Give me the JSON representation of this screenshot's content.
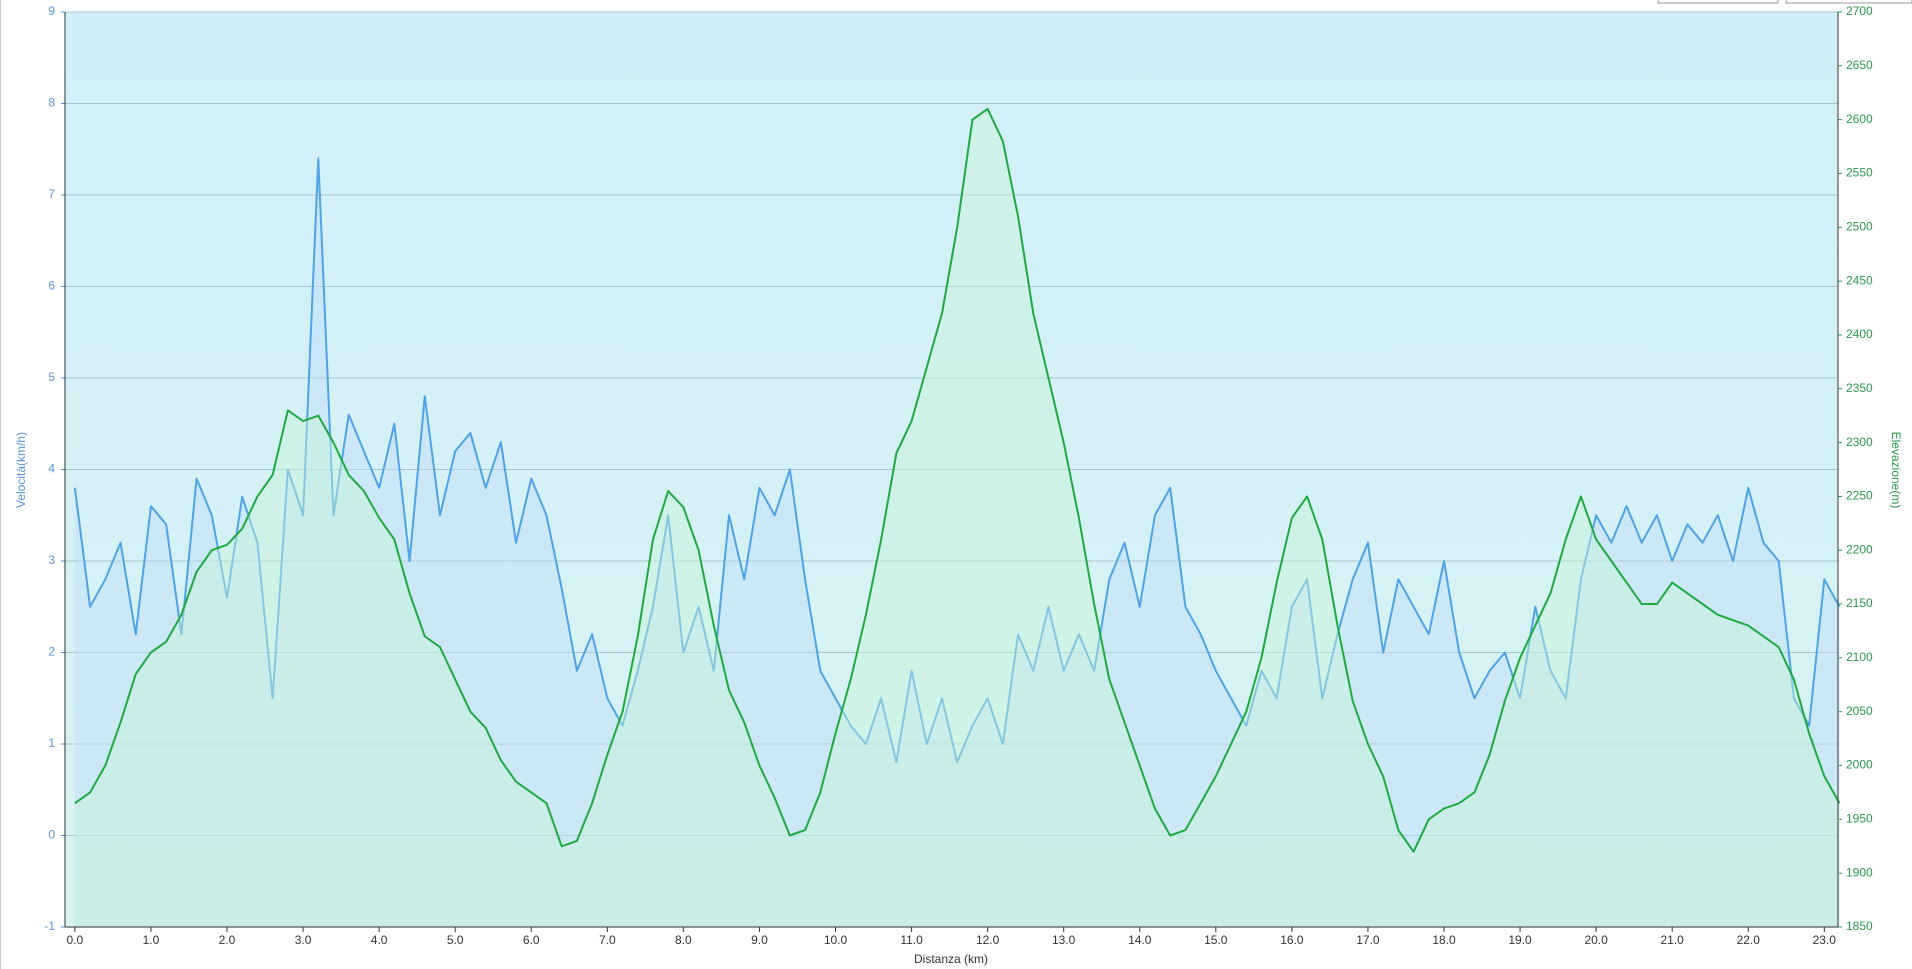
{
  "chart_data": {
    "type": "line",
    "xlabel": "Distanza  (km)",
    "ylabel": "Velocità(km/h)",
    "y2label": "Elevazione(m)",
    "x": [
      0.0,
      0.2,
      0.4,
      0.6,
      0.8,
      1.0,
      1.2,
      1.4,
      1.6,
      1.8,
      2.0,
      2.2,
      2.4,
      2.6,
      2.8,
      3.0,
      3.2,
      3.4,
      3.6,
      3.8,
      4.0,
      4.2,
      4.4,
      4.6,
      4.8,
      5.0,
      5.2,
      5.4,
      5.6,
      5.8,
      6.0,
      6.2,
      6.4,
      6.6,
      6.8,
      7.0,
      7.2,
      7.4,
      7.6,
      7.8,
      8.0,
      8.2,
      8.4,
      8.6,
      8.8,
      9.0,
      9.2,
      9.4,
      9.6,
      9.8,
      10.0,
      10.2,
      10.4,
      10.6,
      10.8,
      11.0,
      11.2,
      11.4,
      11.6,
      11.8,
      12.0,
      12.2,
      12.4,
      12.6,
      12.8,
      13.0,
      13.2,
      13.4,
      13.6,
      13.8,
      14.0,
      14.2,
      14.4,
      14.6,
      14.8,
      15.0,
      15.2,
      15.4,
      15.6,
      15.8,
      16.0,
      16.2,
      16.4,
      16.6,
      16.8,
      17.0,
      17.2,
      17.4,
      17.6,
      17.8,
      18.0,
      18.2,
      18.4,
      18.6,
      18.8,
      19.0,
      19.2,
      19.4,
      19.6,
      19.8,
      20.0,
      20.2,
      20.4,
      20.6,
      20.8,
      21.0,
      21.2,
      21.4,
      21.6,
      21.8,
      22.0,
      22.2,
      22.4,
      22.6,
      22.8,
      23.0,
      23.2
    ],
    "series": [
      {
        "name": "Velocità",
        "color": "#4fa3e6",
        "axis": "y",
        "values": [
          3.8,
          2.5,
          2.8,
          3.2,
          2.2,
          3.6,
          3.4,
          2.2,
          3.9,
          3.5,
          2.6,
          3.7,
          3.2,
          1.5,
          4.0,
          3.5,
          7.4,
          3.5,
          4.6,
          4.2,
          3.8,
          4.5,
          3.0,
          4.8,
          3.5,
          4.2,
          4.4,
          3.8,
          4.3,
          3.2,
          3.9,
          3.5,
          2.7,
          1.8,
          2.2,
          1.5,
          1.2,
          1.8,
          2.5,
          3.5,
          2.0,
          2.5,
          1.8,
          3.5,
          2.8,
          3.8,
          3.5,
          4.0,
          2.8,
          1.8,
          1.5,
          1.2,
          1.0,
          1.5,
          0.8,
          1.8,
          1.0,
          1.5,
          0.8,
          1.2,
          1.5,
          1.0,
          2.2,
          1.8,
          2.5,
          1.8,
          2.2,
          1.8,
          2.8,
          3.2,
          2.5,
          3.5,
          3.8,
          2.5,
          2.2,
          1.8,
          1.5,
          1.2,
          1.8,
          1.5,
          2.5,
          2.8,
          1.5,
          2.2,
          2.8,
          3.2,
          2.0,
          2.8,
          2.5,
          2.2,
          3.0,
          2.0,
          1.5,
          1.8,
          2.0,
          1.5,
          2.5,
          1.8,
          1.5,
          2.8,
          3.5,
          3.2,
          3.6,
          3.2,
          3.5,
          3.0,
          3.4,
          3.2,
          3.5,
          3.0,
          3.8,
          3.2,
          3.0,
          1.5,
          1.2,
          2.8,
          2.5
        ]
      },
      {
        "name": "Elevazione",
        "color": "#1faa40",
        "axis": "y2",
        "values": [
          1965,
          1975,
          2000,
          2040,
          2085,
          2105,
          2115,
          2140,
          2180,
          2200,
          2205,
          2220,
          2250,
          2270,
          2330,
          2320,
          2325,
          2300,
          2270,
          2255,
          2230,
          2210,
          2160,
          2120,
          2110,
          2080,
          2050,
          2035,
          2005,
          1985,
          1975,
          1965,
          1925,
          1930,
          1965,
          2010,
          2050,
          2120,
          2210,
          2255,
          2240,
          2200,
          2130,
          2070,
          2040,
          2000,
          1970,
          1935,
          1940,
          1975,
          2030,
          2080,
          2140,
          2210,
          2290,
          2320,
          2370,
          2420,
          2500,
          2600,
          2610,
          2580,
          2510,
          2420,
          2360,
          2300,
          2230,
          2150,
          2080,
          2040,
          2000,
          1960,
          1935,
          1940,
          1965,
          1990,
          2020,
          2050,
          2100,
          2170,
          2230,
          2250,
          2210,
          2130,
          2060,
          2020,
          1990,
          1940,
          1920,
          1950,
          1960,
          1965,
          1975,
          2010,
          2060,
          2100,
          2130,
          2160,
          2210,
          2250,
          2210,
          2190,
          2170,
          2150,
          2150,
          2170,
          2160,
          2150,
          2140,
          2135,
          2130,
          2120,
          2110,
          2080,
          2030,
          1990,
          1965
        ]
      }
    ],
    "xlim": [
      -0.13,
      23.18
    ],
    "xticks": [
      {
        "value": 0,
        "label": "0.0"
      },
      {
        "value": 1,
        "label": "1.0"
      },
      {
        "value": 2,
        "label": "2.0"
      },
      {
        "value": 3,
        "label": "3.0"
      },
      {
        "value": 4,
        "label": "4.0"
      },
      {
        "value": 5,
        "label": "5.0"
      },
      {
        "value": 6,
        "label": "6.0"
      },
      {
        "value": 7,
        "label": "7.0"
      },
      {
        "value": 8,
        "label": "8.0"
      },
      {
        "value": 9,
        "label": "9.0"
      },
      {
        "value": 10,
        "label": "10.0"
      },
      {
        "value": 11,
        "label": "11.0"
      },
      {
        "value": 12,
        "label": "12.0"
      },
      {
        "value": 13,
        "label": "13.0"
      },
      {
        "value": 14,
        "label": "14.0"
      },
      {
        "value": 15,
        "label": "15.0"
      },
      {
        "value": 16,
        "label": "16.0"
      },
      {
        "value": 17,
        "label": "17.0"
      },
      {
        "value": 18,
        "label": "18.0"
      },
      {
        "value": 19,
        "label": "19.0"
      },
      {
        "value": 20,
        "label": "20.0"
      },
      {
        "value": 21,
        "label": "21.0"
      },
      {
        "value": 22,
        "label": "22.0"
      },
      {
        "value": 23,
        "label": "23.0"
      }
    ],
    "ylim": [
      -1,
      9
    ],
    "yticks": [
      -1,
      0,
      1,
      2,
      3,
      4,
      5,
      6,
      7,
      8,
      9
    ],
    "y2lim": [
      1850,
      2700
    ],
    "y2ticks": [
      1850,
      1900,
      1950,
      2000,
      2050,
      2100,
      2150,
      2200,
      2250,
      2300,
      2350,
      2400,
      2450,
      2500,
      2550,
      2600,
      2650,
      2700
    ],
    "grid": true
  }
}
